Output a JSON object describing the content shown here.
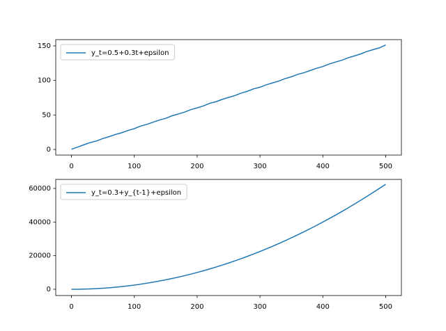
{
  "chart_data": [
    {
      "type": "line",
      "x": [
        0,
        10,
        20,
        30,
        40,
        50,
        60,
        70,
        80,
        90,
        100,
        110,
        120,
        130,
        140,
        150,
        160,
        170,
        180,
        190,
        200,
        210,
        220,
        230,
        240,
        250,
        260,
        270,
        280,
        290,
        300,
        310,
        320,
        330,
        340,
        350,
        360,
        370,
        380,
        390,
        400,
        410,
        420,
        430,
        440,
        450,
        460,
        470,
        480,
        490,
        500
      ],
      "series": [
        {
          "name": "y_t=0.5+0.3t+epsilon",
          "color": "#1f77b4",
          "values": [
            0.3,
            3.6,
            6.9,
            10.1,
            12.4,
            15.9,
            18.6,
            21.8,
            24.3,
            27.6,
            30.2,
            33.9,
            36.4,
            39.6,
            42.7,
            45.1,
            48.8,
            51.4,
            54.2,
            57.7,
            60.3,
            63.1,
            66.9,
            69.2,
            72.6,
            75.4,
            78.1,
            81.6,
            84.3,
            87.9,
            90.2,
            93.7,
            96.4,
            99.1,
            102.6,
            105.3,
            108.8,
            111.2,
            114.4,
            117.6,
            120.1,
            123.8,
            126.5,
            129.2,
            132.7,
            135.4,
            138.3,
            141.9,
            144.6,
            147.2,
            151.3
          ]
        }
      ],
      "xlim": [
        -25,
        525
      ],
      "xticks": [
        0,
        100,
        200,
        300,
        400,
        500
      ],
      "ylim": [
        -8.06,
        159.06
      ],
      "yticks": [
        0,
        50,
        100,
        150
      ],
      "legend": "upper left"
    },
    {
      "type": "line",
      "x": [
        0,
        10,
        20,
        30,
        40,
        50,
        60,
        70,
        80,
        90,
        100,
        110,
        120,
        130,
        140,
        150,
        160,
        170,
        180,
        190,
        200,
        210,
        220,
        230,
        240,
        250,
        260,
        270,
        280,
        290,
        300,
        310,
        320,
        330,
        340,
        350,
        360,
        370,
        380,
        390,
        400,
        410,
        420,
        430,
        440,
        450,
        460,
        470,
        480,
        490,
        500
      ],
      "series": [
        {
          "name": "y_t=0.3+y_{t-1}+epsilon",
          "color": "#1f77b4",
          "values": [
            0,
            25,
            100,
            225,
            400,
            625,
            900,
            1225,
            1600,
            2025,
            2500,
            3025,
            3600,
            4225,
            4900,
            5625,
            6400,
            7225,
            8100,
            9025,
            10000,
            11025,
            12100,
            13225,
            14400,
            15625,
            16900,
            18225,
            19600,
            21025,
            22500,
            24025,
            25600,
            27225,
            28900,
            30625,
            32400,
            34225,
            36100,
            38025,
            40000,
            42025,
            44100,
            46225,
            48400,
            50625,
            52900,
            55225,
            57600,
            60025,
            62500
          ]
        }
      ],
      "xlim": [
        -25,
        525
      ],
      "xticks": [
        0,
        100,
        200,
        300,
        400,
        500
      ],
      "ylim": [
        -3724,
        65379
      ],
      "yticks": [
        0,
        20000,
        40000,
        60000
      ],
      "legend": "upper left"
    }
  ]
}
